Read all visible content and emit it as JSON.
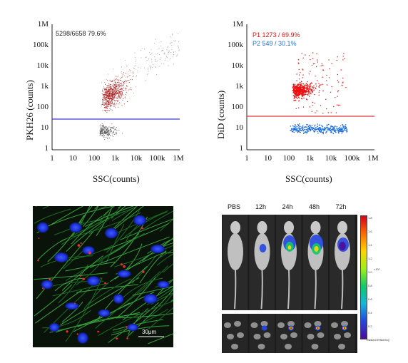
{
  "flow_left": {
    "ylabel": "PKH26 (counts)",
    "xlabel": "SSC(counts)",
    "gate_text": "5298/6658  79.6%",
    "y_ticks": [
      "1M",
      "100k",
      "10k",
      "1k",
      "100",
      "10",
      "1"
    ],
    "x_ticks": [
      "1",
      "10",
      "100",
      "1k",
      "10k",
      "100k",
      "1M"
    ],
    "gate_line_color": "#3b3bd6",
    "upper_color": "#b22222",
    "lower_color": "#555555"
  },
  "flow_right": {
    "ylabel": "DiD (counts)",
    "xlabel": "SSC(counts)",
    "p1_text": "P1  1273 / 69.9%",
    "p2_text": "P2  549 / 30.1%",
    "y_ticks": [
      "1M",
      "100k",
      "10k",
      "1k",
      "100",
      "10",
      "1"
    ],
    "x_ticks": [
      "1",
      "10",
      "100",
      "1k",
      "10k",
      "100k",
      "1M"
    ],
    "gate_line_color": "#e23a3a",
    "p1_color": "#ee1111",
    "p2_color": "#1f6fe0"
  },
  "microscopy": {
    "scale_label": "30μm"
  },
  "ivis": {
    "timepoints": [
      "PBS",
      "12h",
      "24h",
      "48h",
      "72h"
    ],
    "colorbar_ticks": [
      "1.8",
      "1.6",
      "1.4",
      "1.2",
      "1.0",
      "0.8",
      "0.6",
      "0.4",
      "0.2"
    ],
    "colorbar_unit": "×10⁹",
    "colorbar_title": "Radiant Efficiency"
  }
}
